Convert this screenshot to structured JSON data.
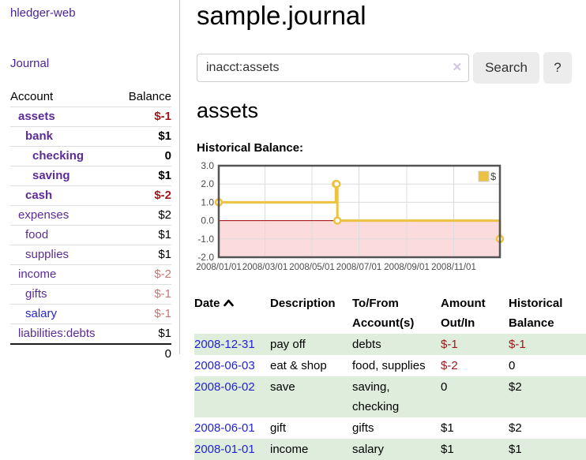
{
  "brand": "hledger-web",
  "nav": {
    "journal_label": "Journal"
  },
  "accounts_panel": {
    "account_header": "Account",
    "balance_header": "Balance",
    "rows": [
      {
        "name": "assets",
        "balance": "$-1"
      },
      {
        "name": "bank",
        "balance": "$1"
      },
      {
        "name": "checking",
        "balance": "0"
      },
      {
        "name": "saving",
        "balance": "$1"
      },
      {
        "name": "cash",
        "balance": "$-2"
      },
      {
        "name": "expenses",
        "balance": "$2"
      },
      {
        "name": "food",
        "balance": "$1"
      },
      {
        "name": "supplies",
        "balance": "$1"
      },
      {
        "name": "income",
        "balance": "$-2"
      },
      {
        "name": "gifts",
        "balance": "$-1"
      },
      {
        "name": "salary",
        "balance": "$-1"
      },
      {
        "name": "liabilities:debts",
        "balance": "$1"
      }
    ],
    "total": "0"
  },
  "header": {
    "title": "sample.journal"
  },
  "search": {
    "query": "inacct:assets",
    "clear_icon": "✕",
    "search_button": "Search",
    "help_button": "?"
  },
  "account_page": {
    "heading": "assets",
    "chart_title": "Historical Balance:"
  },
  "chart_data": {
    "type": "line",
    "style": "step",
    "title": "Historical Balance",
    "legend": "$",
    "legend_position": "top-right",
    "grid": true,
    "xlim": [
      "2008/01/01",
      "2008/12/31"
    ],
    "ylim": [
      -2.0,
      3.0
    ],
    "x_ticks": [
      "2008/01/01",
      "2008/03/01",
      "2008/05/01",
      "2008/07/01",
      "2008/09/01",
      "2008/11/01"
    ],
    "y_ticks": [
      3.0,
      2.0,
      1.0,
      0.0,
      -1.0,
      -2.0
    ],
    "series": [
      {
        "name": "$",
        "color": "#edc240",
        "points": [
          {
            "x": "2008/01/01",
            "y": 1
          },
          {
            "x": "2008/06/01",
            "y": 2
          },
          {
            "x": "2008/06/02",
            "y": 2
          },
          {
            "x": "2008/06/03",
            "y": 0
          },
          {
            "x": "2008/12/31",
            "y": -1
          }
        ]
      }
    ],
    "negative_region_color": "#fbdbdb",
    "zero_line_color": "#9b0000",
    "grid_color": "#dcdcdc",
    "border_color": "#545454"
  },
  "register": {
    "columns": {
      "date": "Date",
      "description": "Description",
      "accounts": "To/From Account(s)",
      "amount": "Amount Out/In",
      "balance": "Historical Balance"
    },
    "rows": [
      {
        "date": "2008-12-31",
        "description": "pay off",
        "accounts": "debts",
        "amount": "$-1",
        "balance": "$-1"
      },
      {
        "date": "2008-06-03",
        "description": "eat & shop",
        "accounts": "food, supplies",
        "amount": "$-2",
        "balance": "0"
      },
      {
        "date": "2008-06-02",
        "description": "save",
        "accounts": "saving, checking",
        "amount": "0",
        "balance": "$2"
      },
      {
        "date": "2008-06-01",
        "description": "gift",
        "accounts": "gifts",
        "amount": "$1",
        "balance": "$2"
      },
      {
        "date": "2008-01-01",
        "description": "income",
        "accounts": "salary",
        "amount": "$1",
        "balance": "$1"
      }
    ]
  }
}
